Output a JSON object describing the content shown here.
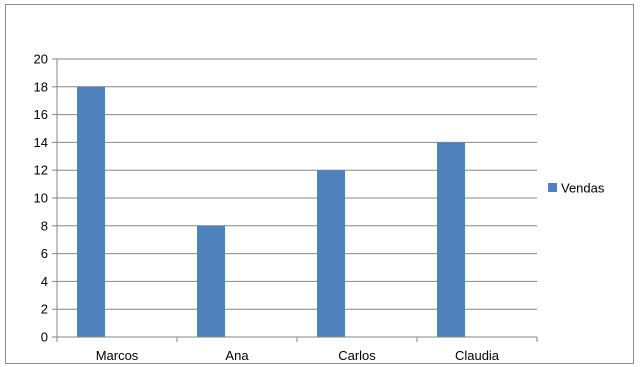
{
  "chart_data": {
    "type": "bar",
    "categories": [
      "Marcos",
      "Ana",
      "Carlos",
      "Claudia"
    ],
    "series": [
      {
        "name": "Vendas",
        "values": [
          18,
          8,
          12,
          14
        ],
        "color": "#4F81BD"
      }
    ],
    "yticks": [
      "0",
      "2",
      "4",
      "6",
      "8",
      "10",
      "12",
      "14",
      "16",
      "18",
      "20"
    ],
    "ylim": [
      0,
      20
    ],
    "grid": true,
    "legend_position": "right"
  }
}
